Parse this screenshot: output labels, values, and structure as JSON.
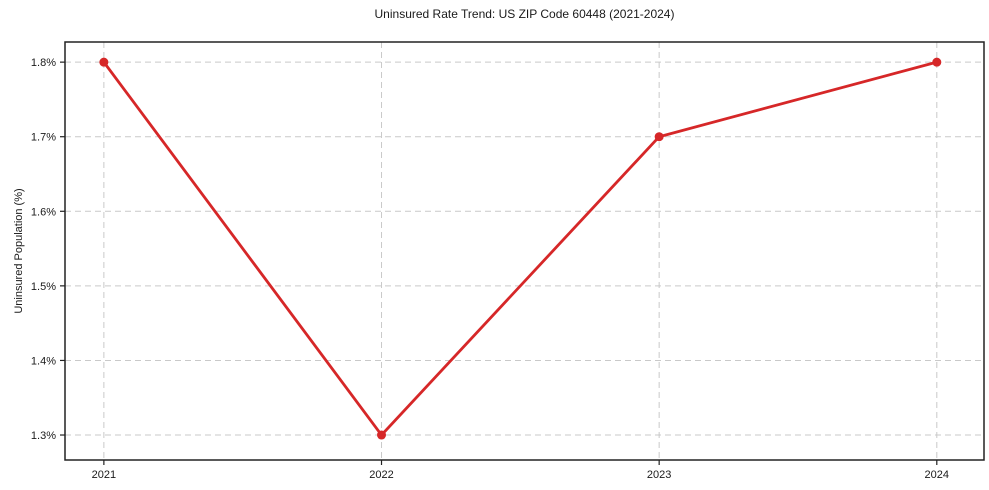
{
  "chart_data": {
    "type": "line",
    "title": "Uninsured Rate Trend: US ZIP Code 60448 (2021-2024)",
    "xlabel": "",
    "ylabel": "Uninsured Population (%)",
    "x": [
      2021,
      2022,
      2023,
      2024
    ],
    "x_tick_labels": [
      "2021",
      "2022",
      "2023",
      "2024"
    ],
    "values": [
      1.8,
      1.3,
      1.7,
      1.8
    ],
    "y_ticks": [
      1.3,
      1.4,
      1.5,
      1.6,
      1.7,
      1.8
    ],
    "y_tick_labels": [
      "1.3%",
      "1.4%",
      "1.5%",
      "1.6%",
      "1.7%",
      "1.8%"
    ],
    "xlim": [
      2020.86,
      2024.17
    ],
    "ylim": [
      1.2665,
      1.827
    ],
    "grid": true,
    "grid_style": "dashed",
    "legend": "none",
    "colors": {
      "line": "#d62728",
      "marker": "#d62728",
      "grid": "#c9c9c9",
      "spine": "#222222",
      "text": "#1a1a1a"
    }
  }
}
